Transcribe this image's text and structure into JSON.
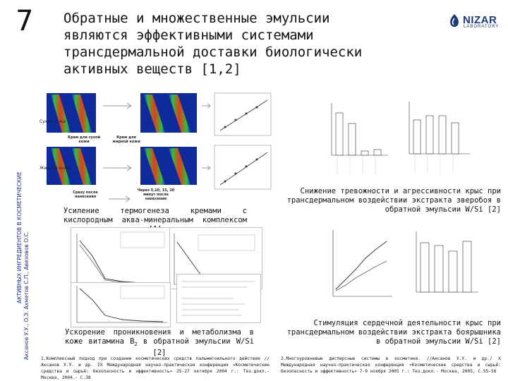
{
  "slide": {
    "number": "7",
    "title": "Обратные и множественные эмульсии являются эффективными системами трансдермальной доставки биологически активных веществ [1,2]"
  },
  "logo": {
    "name": "NIZAR",
    "sub": "LABORATORY",
    "icon": "nizar-logo-icon",
    "color": "#1e3a7a"
  },
  "side_text": {
    "line1": "АКТИВНЫХ ИНГРЕДИЕНТОВ В КОСМЕТИЧЕСКИЕ",
    "line2": "Аксанов У.У., О.Э. Ахметов С.П., Авезовов О.С."
  },
  "thermo_figure": {
    "label_dry": "Сухая кожа",
    "label_oily": "Жирная кожа",
    "label_cream_dry": "Крем для сухой кожи",
    "label_cream_oily": "Крем для жирной кожи",
    "label_after": "Сразу после нанесения",
    "label_later": "Через 5,10, 15, 20 минут после нанесения"
  },
  "captions": {
    "thermo": "Усиление термогенеза кремами с кислородным аква-минеральным комплексом [1]",
    "vitb2_pre": "Ускорение проникновения и метаболизма в коже витамина B",
    "vitb2_sub": "2",
    "vitb2_post": " в обратной эмульсии W/Si [2]",
    "anxiety": "Снижение тревожности и агрессивности крыс при трансдермальном воздействии экстракта зверобоя в обратной эмульсии W/Si [2]",
    "cardio": "Стимуляция сердечной деятельности крыс при трансдермальном воздействии экстракта боярышника в обратной эмульсии W/Si [2]"
  },
  "references": {
    "ref1": "1.Комплексный подход при создании косметических средств пальмитоильного действия //Аксанов У.У. и др. IX Международная научно-практическая конференция «Косметические средства и сырьё: безопасность и эффективность» 25-27 октября 2004 г.: Тез.докл.- Москва, 2004.- С.38",
    "ref2": "2.Многоуровневые дисперсные системы в косметике. //Аксанов У.У. и др./ X Международная научно-практическая конференция «Косметические средства и сырьё: безопасность и эффективность» 7-9 ноября 2005 г.: Тез.докл.- Москва, 2005, С.55-56"
  },
  "colors": {
    "thermo_red": "#e53b1f",
    "thermo_green": "#2fbf3a",
    "thermo_blue": "#1f3fd8",
    "bar_fill": "#ffffff",
    "bar_stroke": "#333333"
  }
}
